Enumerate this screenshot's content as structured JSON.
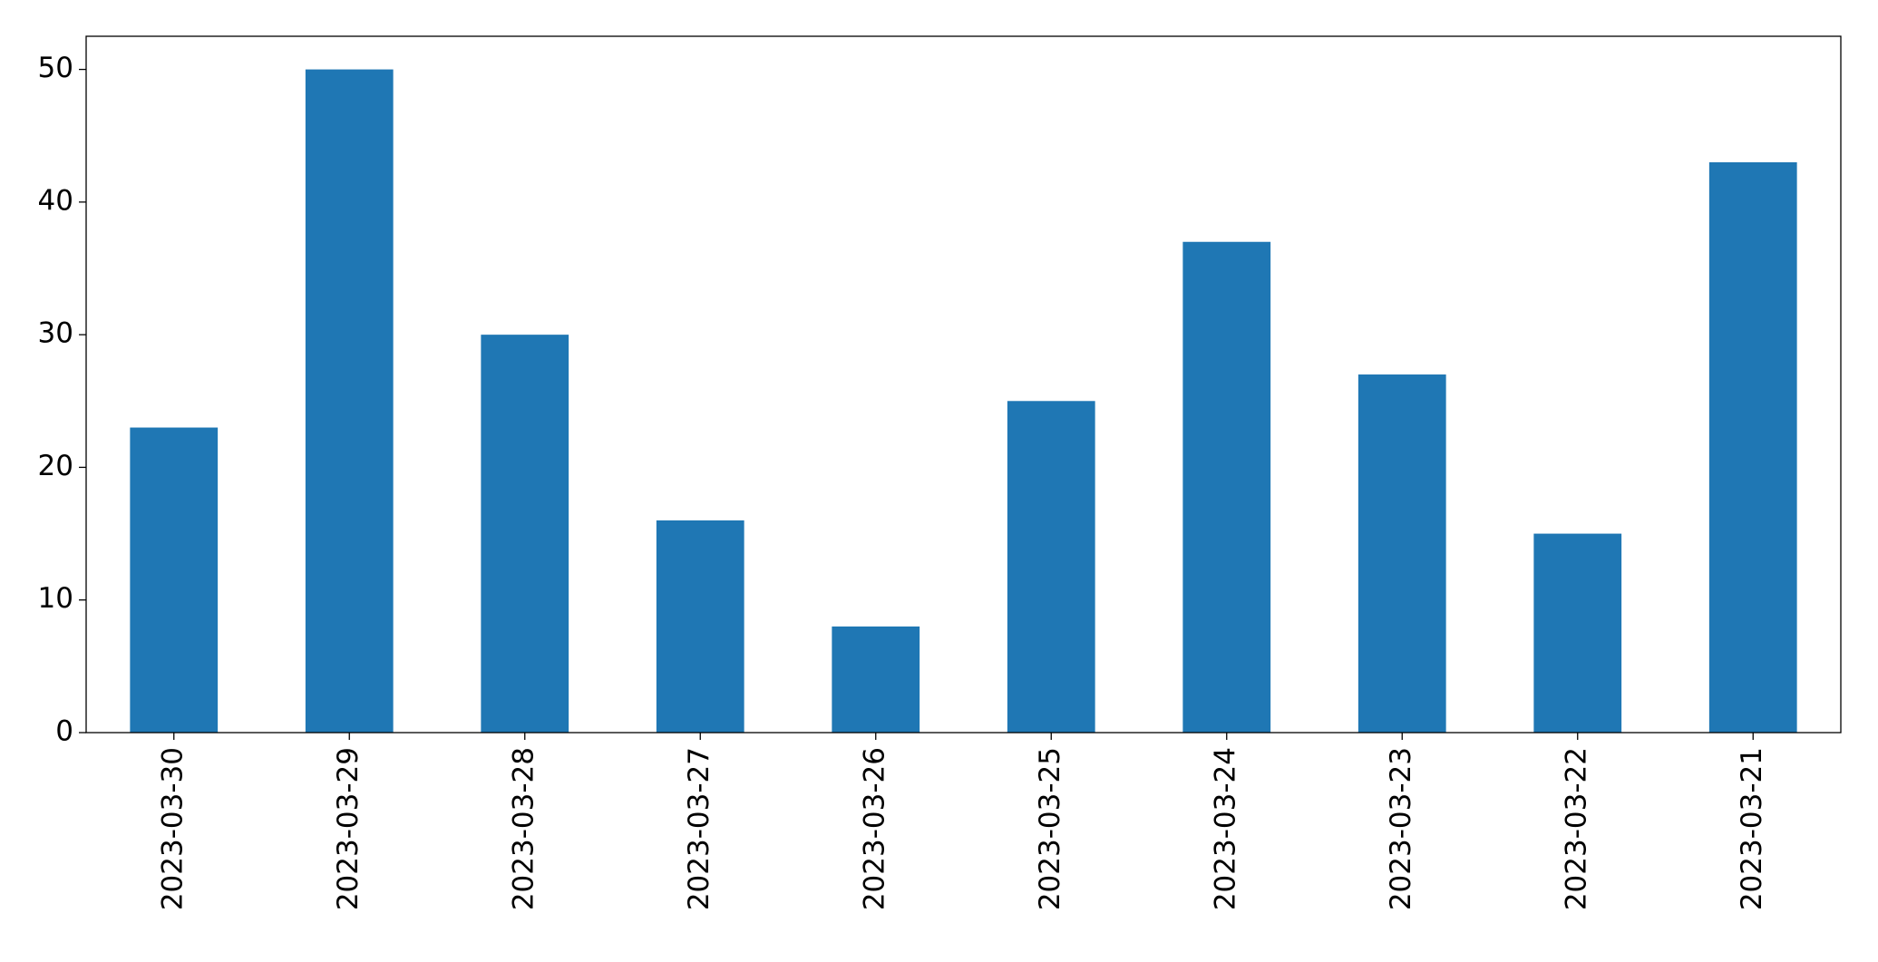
{
  "chart_data": {
    "type": "bar",
    "categories": [
      "2023-03-30",
      "2023-03-29",
      "2023-03-28",
      "2023-03-27",
      "2023-03-26",
      "2023-03-25",
      "2023-03-24",
      "2023-03-23",
      "2023-03-22",
      "2023-03-21"
    ],
    "values": [
      23,
      50,
      30,
      16,
      8,
      25,
      37,
      27,
      15,
      43
    ],
    "color": "#1f77b4",
    "ylim": [
      0,
      52.5
    ],
    "yticks": [
      0,
      10,
      20,
      30,
      40,
      50
    ],
    "grid": false
  }
}
